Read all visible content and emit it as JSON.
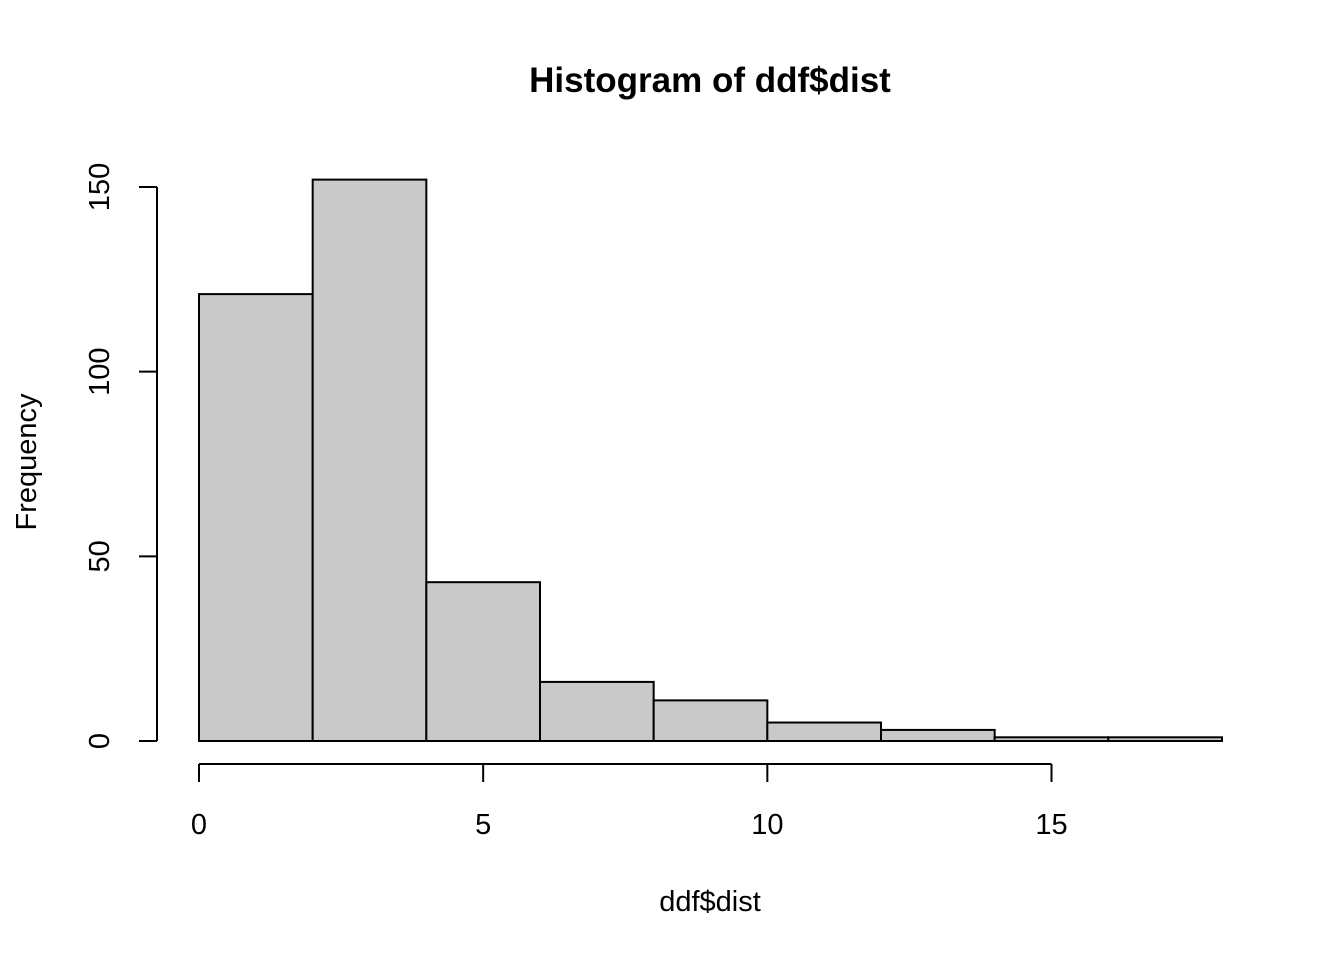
{
  "chart_data": {
    "type": "bar",
    "subtype": "histogram",
    "title": "Histogram of ddf$dist",
    "xlabel": "ddf$dist",
    "ylabel": "Frequency",
    "bins": [
      {
        "start": 0,
        "end": 2,
        "count": 121
      },
      {
        "start": 2,
        "end": 4,
        "count": 152
      },
      {
        "start": 4,
        "end": 6,
        "count": 43
      },
      {
        "start": 6,
        "end": 8,
        "count": 16
      },
      {
        "start": 8,
        "end": 10,
        "count": 11
      },
      {
        "start": 10,
        "end": 12,
        "count": 5
      },
      {
        "start": 12,
        "end": 14,
        "count": 3
      },
      {
        "start": 14,
        "end": 16,
        "count": 1
      },
      {
        "start": 16,
        "end": 18,
        "count": 1
      }
    ],
    "xlim": [
      0,
      18
    ],
    "ylim": [
      0,
      150
    ],
    "xticks": [
      0,
      5,
      10,
      15
    ],
    "yticks": [
      0,
      50,
      100,
      150
    ],
    "bar_color": "#c9c9c9",
    "grid": false,
    "legend": "none"
  }
}
